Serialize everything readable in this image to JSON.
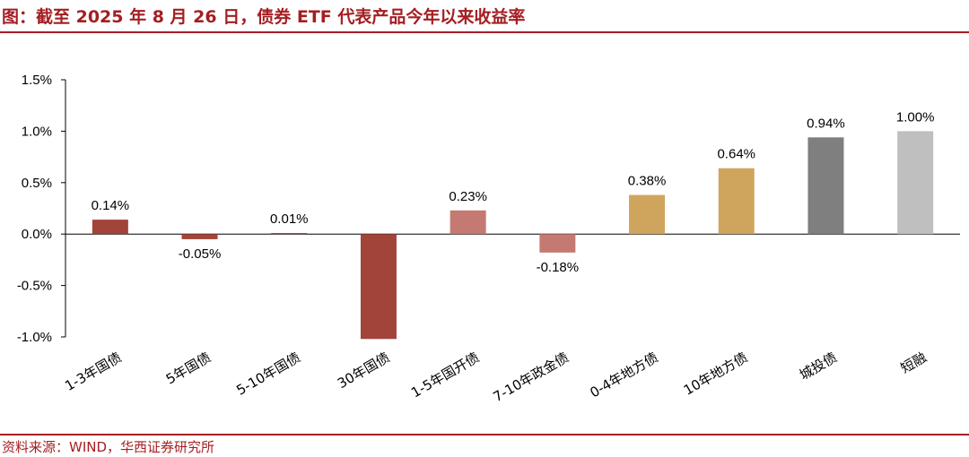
{
  "title": "图：截至 2025 年 8 月 26 日，债券 ETF 代表产品今年以来收益率",
  "source": "资料来源：WIND，华西证券研究所",
  "colors": {
    "brand": "#a41e22",
    "dark_red": "#a2443a",
    "light_red": "#c47a72",
    "gold": "#cfa55e",
    "dark_gray": "#7f7f7f",
    "light_gray": "#bfbfbf"
  },
  "chart_data": {
    "type": "bar",
    "title": "",
    "xlabel": "",
    "ylabel": "",
    "ylim": [
      -1.0,
      1.5
    ],
    "yticks": [
      1.5,
      1.0,
      0.5,
      0.0,
      -0.5,
      -1.0
    ],
    "ytick_labels": [
      "1.5%",
      "1.0%",
      "0.5%",
      "0.0%",
      "-0.5%",
      "-1.0%"
    ],
    "grid": false,
    "legend": "none",
    "unit": "%",
    "categories": [
      "1-3年国债",
      "5年国债",
      "5-10年国债",
      "30年国债",
      "1-5年国开债",
      "7-10年政金债",
      "0-4年地方债",
      "10年地方债",
      "城投债",
      "短融"
    ],
    "values": [
      0.14,
      -0.05,
      0.01,
      -1.02,
      0.23,
      -0.18,
      0.38,
      0.64,
      0.94,
      1.0
    ],
    "data_labels": [
      "0.14%",
      "-0.05%",
      "0.01%",
      "",
      "0.23%",
      "-0.18%",
      "0.38%",
      "0.64%",
      "0.94%",
      "1.00%"
    ],
    "bar_colors": [
      "#a2443a",
      "#a2443a",
      "#a2443a",
      "#a2443a",
      "#c47a72",
      "#c47a72",
      "#cfa55e",
      "#cfa55e",
      "#7f7f7f",
      "#bfbfbf"
    ]
  }
}
